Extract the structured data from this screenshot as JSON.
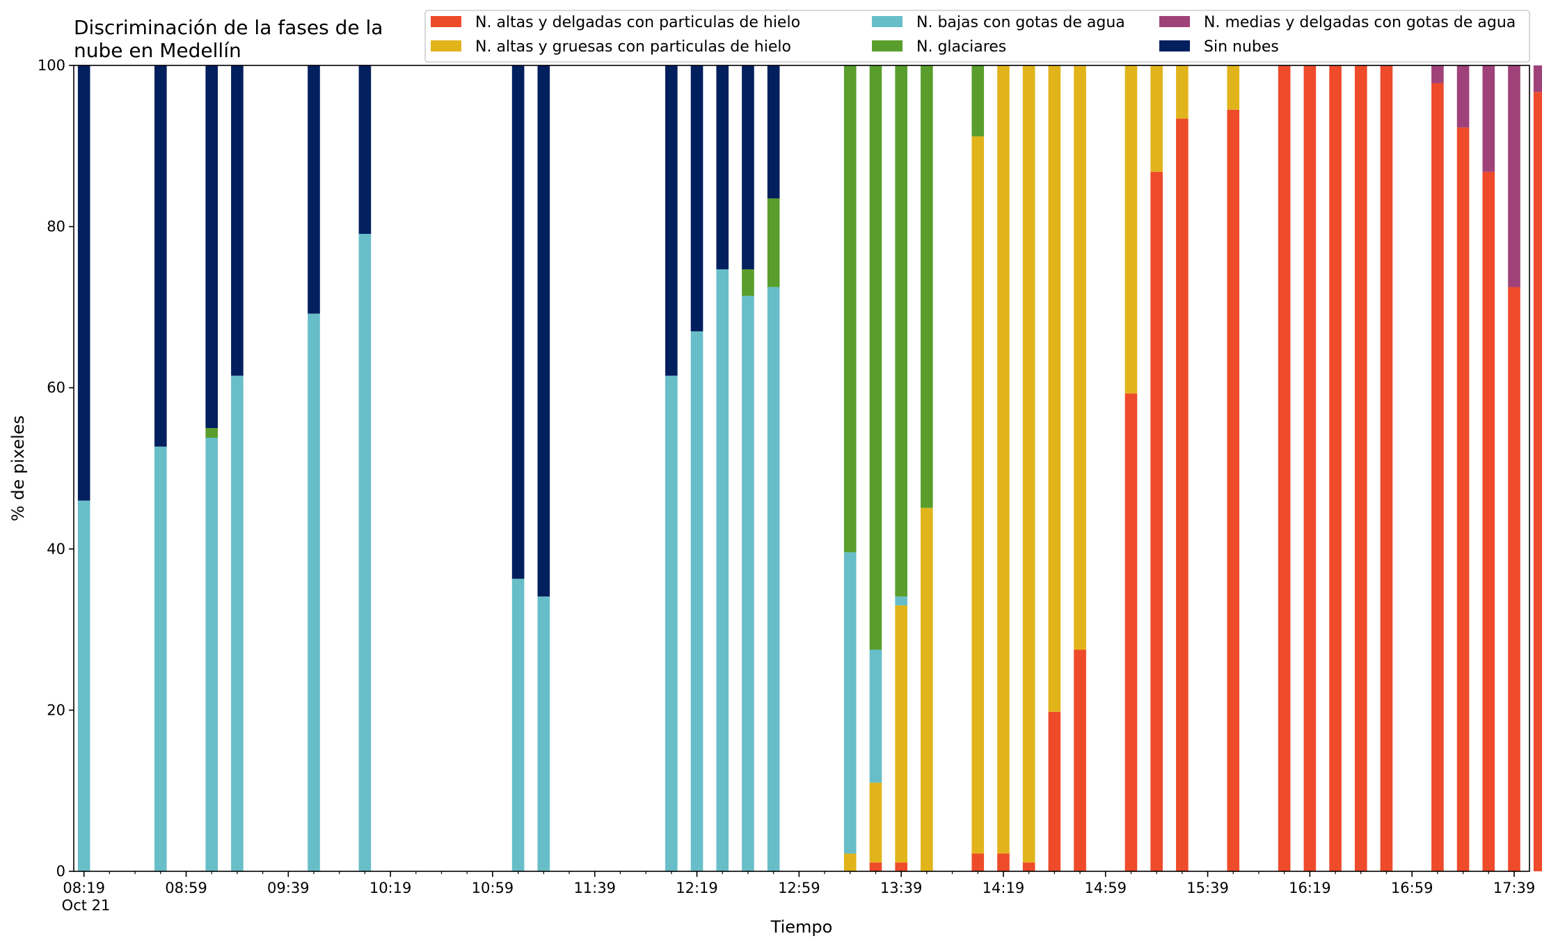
{
  "chart_data": {
    "type": "bar",
    "stacked": true,
    "title": "Discriminación de la fases de la\nnube en Medellín",
    "xlabel": "Tiempo",
    "ylabel": "% de pixeles",
    "ylim": [
      0,
      100
    ],
    "yticks": [
      0,
      20,
      40,
      60,
      80,
      100
    ],
    "xlim_minutes": [
      495,
      1065
    ],
    "xticks": [
      {
        "minute": 499,
        "label": "08:19",
        "sublabel": "Oct 21"
      },
      {
        "minute": 539,
        "label": "08:59"
      },
      {
        "minute": 579,
        "label": "09:39"
      },
      {
        "minute": 619,
        "label": "10:19"
      },
      {
        "minute": 659,
        "label": "10:59"
      },
      {
        "minute": 699,
        "label": "11:39"
      },
      {
        "minute": 739,
        "label": "12:19"
      },
      {
        "minute": 779,
        "label": "12:59"
      },
      {
        "minute": 819,
        "label": "13:39"
      },
      {
        "minute": 859,
        "label": "14:19"
      },
      {
        "minute": 899,
        "label": "14:59"
      },
      {
        "minute": 939,
        "label": "15:39"
      },
      {
        "minute": 979,
        "label": "16:19"
      },
      {
        "minute": 1019,
        "label": "16:59"
      },
      {
        "minute": 1059,
        "label": "17:39"
      }
    ],
    "minor_tick_step_minutes": 10,
    "grid": false,
    "legend_position": "top",
    "series": [
      {
        "key": "alta_delgada",
        "name": "N. altas y delgadas con particulas de hielo",
        "color": "#EE4B2B"
      },
      {
        "key": "alta_gruesa",
        "name": "N. altas y gruesas con particulas de hielo",
        "color": "#E2B41C"
      },
      {
        "key": "baja_agua",
        "name": "N. bajas con gotas de agua",
        "color": "#68BEC8"
      },
      {
        "key": "glaciar",
        "name": "N. glaciares",
        "color": "#599E2C"
      },
      {
        "key": "media_agua",
        "name": "N. medias y delgadas con gotas de agua",
        "color": "#A0427A"
      },
      {
        "key": "sin_nubes",
        "name": "Sin nubes",
        "color": "#021F5E"
      }
    ],
    "stack_order": [
      "alta_delgada",
      "alta_gruesa",
      "baja_agua",
      "glaciar",
      "media_agua",
      "sin_nubes"
    ],
    "bars": [
      {
        "time": "08:19",
        "minute": 499,
        "values": {
          "alta_delgada": 0,
          "alta_gruesa": 0,
          "baja_agua": 46,
          "glaciar": 0,
          "media_agua": 0,
          "sin_nubes": 54
        }
      },
      {
        "time": "08:49",
        "minute": 529,
        "values": {
          "alta_delgada": 0,
          "alta_gruesa": 0,
          "baja_agua": 52.7,
          "glaciar": 0,
          "media_agua": 0,
          "sin_nubes": 47.3
        }
      },
      {
        "time": "09:09",
        "minute": 549,
        "values": {
          "alta_delgada": 0,
          "alta_gruesa": 0,
          "baja_agua": 53.8,
          "glaciar": 1.2,
          "media_agua": 0,
          "sin_nubes": 45
        }
      },
      {
        "time": "09:19",
        "minute": 559,
        "values": {
          "alta_delgada": 0,
          "alta_gruesa": 0,
          "baja_agua": 61.5,
          "glaciar": 0,
          "media_agua": 0,
          "sin_nubes": 38.5
        }
      },
      {
        "time": "09:49",
        "minute": 589,
        "values": {
          "alta_delgada": 0,
          "alta_gruesa": 0,
          "baja_agua": 69.2,
          "glaciar": 0,
          "media_agua": 0,
          "sin_nubes": 30.8
        }
      },
      {
        "time": "10:09",
        "minute": 609,
        "values": {
          "alta_delgada": 0,
          "alta_gruesa": 0,
          "baja_agua": 79.1,
          "glaciar": 0,
          "media_agua": 0,
          "sin_nubes": 20.9
        }
      },
      {
        "time": "11:09",
        "minute": 669,
        "values": {
          "alta_delgada": 0,
          "alta_gruesa": 0,
          "baja_agua": 36.3,
          "glaciar": 0,
          "media_agua": 0,
          "sin_nubes": 63.7
        }
      },
      {
        "time": "11:19",
        "minute": 679,
        "values": {
          "alta_delgada": 0,
          "alta_gruesa": 0,
          "baja_agua": 34.1,
          "glaciar": 0,
          "media_agua": 0,
          "sin_nubes": 65.9
        }
      },
      {
        "time": "12:09",
        "minute": 729,
        "values": {
          "alta_delgada": 0,
          "alta_gruesa": 0,
          "baja_agua": 61.5,
          "glaciar": 0,
          "media_agua": 0,
          "sin_nubes": 38.5
        }
      },
      {
        "time": "12:19",
        "minute": 739,
        "values": {
          "alta_delgada": 0,
          "alta_gruesa": 0,
          "baja_agua": 67,
          "glaciar": 0,
          "media_agua": 0,
          "sin_nubes": 33
        }
      },
      {
        "time": "12:29",
        "minute": 749,
        "values": {
          "alta_delgada": 0,
          "alta_gruesa": 0,
          "baja_agua": 74.7,
          "glaciar": 0,
          "media_agua": 0,
          "sin_nubes": 25.3
        }
      },
      {
        "time": "12:39",
        "minute": 759,
        "values": {
          "alta_delgada": 0,
          "alta_gruesa": 0,
          "baja_agua": 71.4,
          "glaciar": 3.3,
          "media_agua": 0,
          "sin_nubes": 25.3
        }
      },
      {
        "time": "12:49",
        "minute": 769,
        "values": {
          "alta_delgada": 0,
          "alta_gruesa": 0,
          "baja_agua": 72.5,
          "glaciar": 11,
          "media_agua": 0,
          "sin_nubes": 16.5
        }
      },
      {
        "time": "13:19",
        "minute": 799,
        "values": {
          "alta_delgada": 0,
          "alta_gruesa": 2.2,
          "baja_agua": 37.4,
          "glaciar": 60.4,
          "media_agua": 0,
          "sin_nubes": 0
        }
      },
      {
        "time": "13:29",
        "minute": 809,
        "values": {
          "alta_delgada": 1.1,
          "alta_gruesa": 9.9,
          "baja_agua": 16.5,
          "glaciar": 72.5,
          "media_agua": 0,
          "sin_nubes": 0
        }
      },
      {
        "time": "13:39",
        "minute": 819,
        "values": {
          "alta_delgada": 1.1,
          "alta_gruesa": 31.9,
          "baja_agua": 1.1,
          "glaciar": 65.9,
          "media_agua": 0,
          "sin_nubes": 0
        }
      },
      {
        "time": "13:49",
        "minute": 829,
        "values": {
          "alta_delgada": 0,
          "alta_gruesa": 45.1,
          "baja_agua": 0,
          "glaciar": 54.9,
          "media_agua": 0,
          "sin_nubes": 0
        }
      },
      {
        "time": "14:09",
        "minute": 849,
        "values": {
          "alta_delgada": 2.2,
          "alta_gruesa": 89,
          "baja_agua": 0,
          "glaciar": 8.8,
          "media_agua": 0,
          "sin_nubes": 0
        }
      },
      {
        "time": "14:19",
        "minute": 859,
        "values": {
          "alta_delgada": 2.2,
          "alta_gruesa": 97.8,
          "baja_agua": 0,
          "glaciar": 0,
          "media_agua": 0,
          "sin_nubes": 0
        }
      },
      {
        "time": "14:29",
        "minute": 869,
        "values": {
          "alta_delgada": 1.1,
          "alta_gruesa": 98.9,
          "baja_agua": 0,
          "glaciar": 0,
          "media_agua": 0,
          "sin_nubes": 0
        }
      },
      {
        "time": "14:39",
        "minute": 879,
        "values": {
          "alta_delgada": 19.8,
          "alta_gruesa": 80.2,
          "baja_agua": 0,
          "glaciar": 0,
          "media_agua": 0,
          "sin_nubes": 0
        }
      },
      {
        "time": "14:49",
        "minute": 889,
        "values": {
          "alta_delgada": 27.5,
          "alta_gruesa": 72.5,
          "baja_agua": 0,
          "glaciar": 0,
          "media_agua": 0,
          "sin_nubes": 0
        }
      },
      {
        "time": "15:09",
        "minute": 909,
        "values": {
          "alta_delgada": 59.3,
          "alta_gruesa": 40.7,
          "baja_agua": 0,
          "glaciar": 0,
          "media_agua": 0,
          "sin_nubes": 0
        }
      },
      {
        "time": "15:19",
        "minute": 919,
        "values": {
          "alta_delgada": 86.8,
          "alta_gruesa": 13.2,
          "baja_agua": 0,
          "glaciar": 0,
          "media_agua": 0,
          "sin_nubes": 0
        }
      },
      {
        "time": "15:29",
        "minute": 929,
        "values": {
          "alta_delgada": 93.4,
          "alta_gruesa": 6.6,
          "baja_agua": 0,
          "glaciar": 0,
          "media_agua": 0,
          "sin_nubes": 0
        }
      },
      {
        "time": "15:49",
        "minute": 949,
        "values": {
          "alta_delgada": 94.5,
          "alta_gruesa": 5.5,
          "baja_agua": 0,
          "glaciar": 0,
          "media_agua": 0,
          "sin_nubes": 0
        }
      },
      {
        "time": "16:09",
        "minute": 969,
        "values": {
          "alta_delgada": 100,
          "alta_gruesa": 0,
          "baja_agua": 0,
          "glaciar": 0,
          "media_agua": 0,
          "sin_nubes": 0
        }
      },
      {
        "time": "16:19",
        "minute": 979,
        "values": {
          "alta_delgada": 100,
          "alta_gruesa": 0,
          "baja_agua": 0,
          "glaciar": 0,
          "media_agua": 0,
          "sin_nubes": 0
        }
      },
      {
        "time": "16:29",
        "minute": 989,
        "values": {
          "alta_delgada": 100,
          "alta_gruesa": 0,
          "baja_agua": 0,
          "glaciar": 0,
          "media_agua": 0,
          "sin_nubes": 0
        }
      },
      {
        "time": "16:39",
        "minute": 999,
        "values": {
          "alta_delgada": 100,
          "alta_gruesa": 0,
          "baja_agua": 0,
          "glaciar": 0,
          "media_agua": 0,
          "sin_nubes": 0
        }
      },
      {
        "time": "16:49",
        "minute": 1009,
        "values": {
          "alta_delgada": 100,
          "alta_gruesa": 0,
          "baja_agua": 0,
          "glaciar": 0,
          "media_agua": 0,
          "sin_nubes": 0
        }
      },
      {
        "time": "17:09",
        "minute": 1029,
        "values": {
          "alta_delgada": 97.8,
          "alta_gruesa": 0,
          "baja_agua": 0,
          "glaciar": 0,
          "media_agua": 2.2,
          "sin_nubes": 0
        }
      },
      {
        "time": "17:19",
        "minute": 1039,
        "values": {
          "alta_delgada": 92.3,
          "alta_gruesa": 0,
          "baja_agua": 0,
          "glaciar": 0,
          "media_agua": 7.7,
          "sin_nubes": 0
        }
      },
      {
        "time": "17:29",
        "minute": 1049,
        "values": {
          "alta_delgada": 86.8,
          "alta_gruesa": 0,
          "baja_agua": 0,
          "glaciar": 0,
          "media_agua": 13.2,
          "sin_nubes": 0
        }
      },
      {
        "time": "17:39",
        "minute": 1059,
        "values": {
          "alta_delgada": 72.5,
          "alta_gruesa": 0,
          "baja_agua": 0,
          "glaciar": 0,
          "media_agua": 27.5,
          "sin_nubes": 0
        }
      },
      {
        "time": "17:49",
        "minute": 1069,
        "values": {
          "alta_delgada": 96.7,
          "alta_gruesa": 0,
          "baja_agua": 0,
          "glaciar": 0,
          "media_agua": 3.3,
          "sin_nubes": 0
        }
      }
    ]
  }
}
